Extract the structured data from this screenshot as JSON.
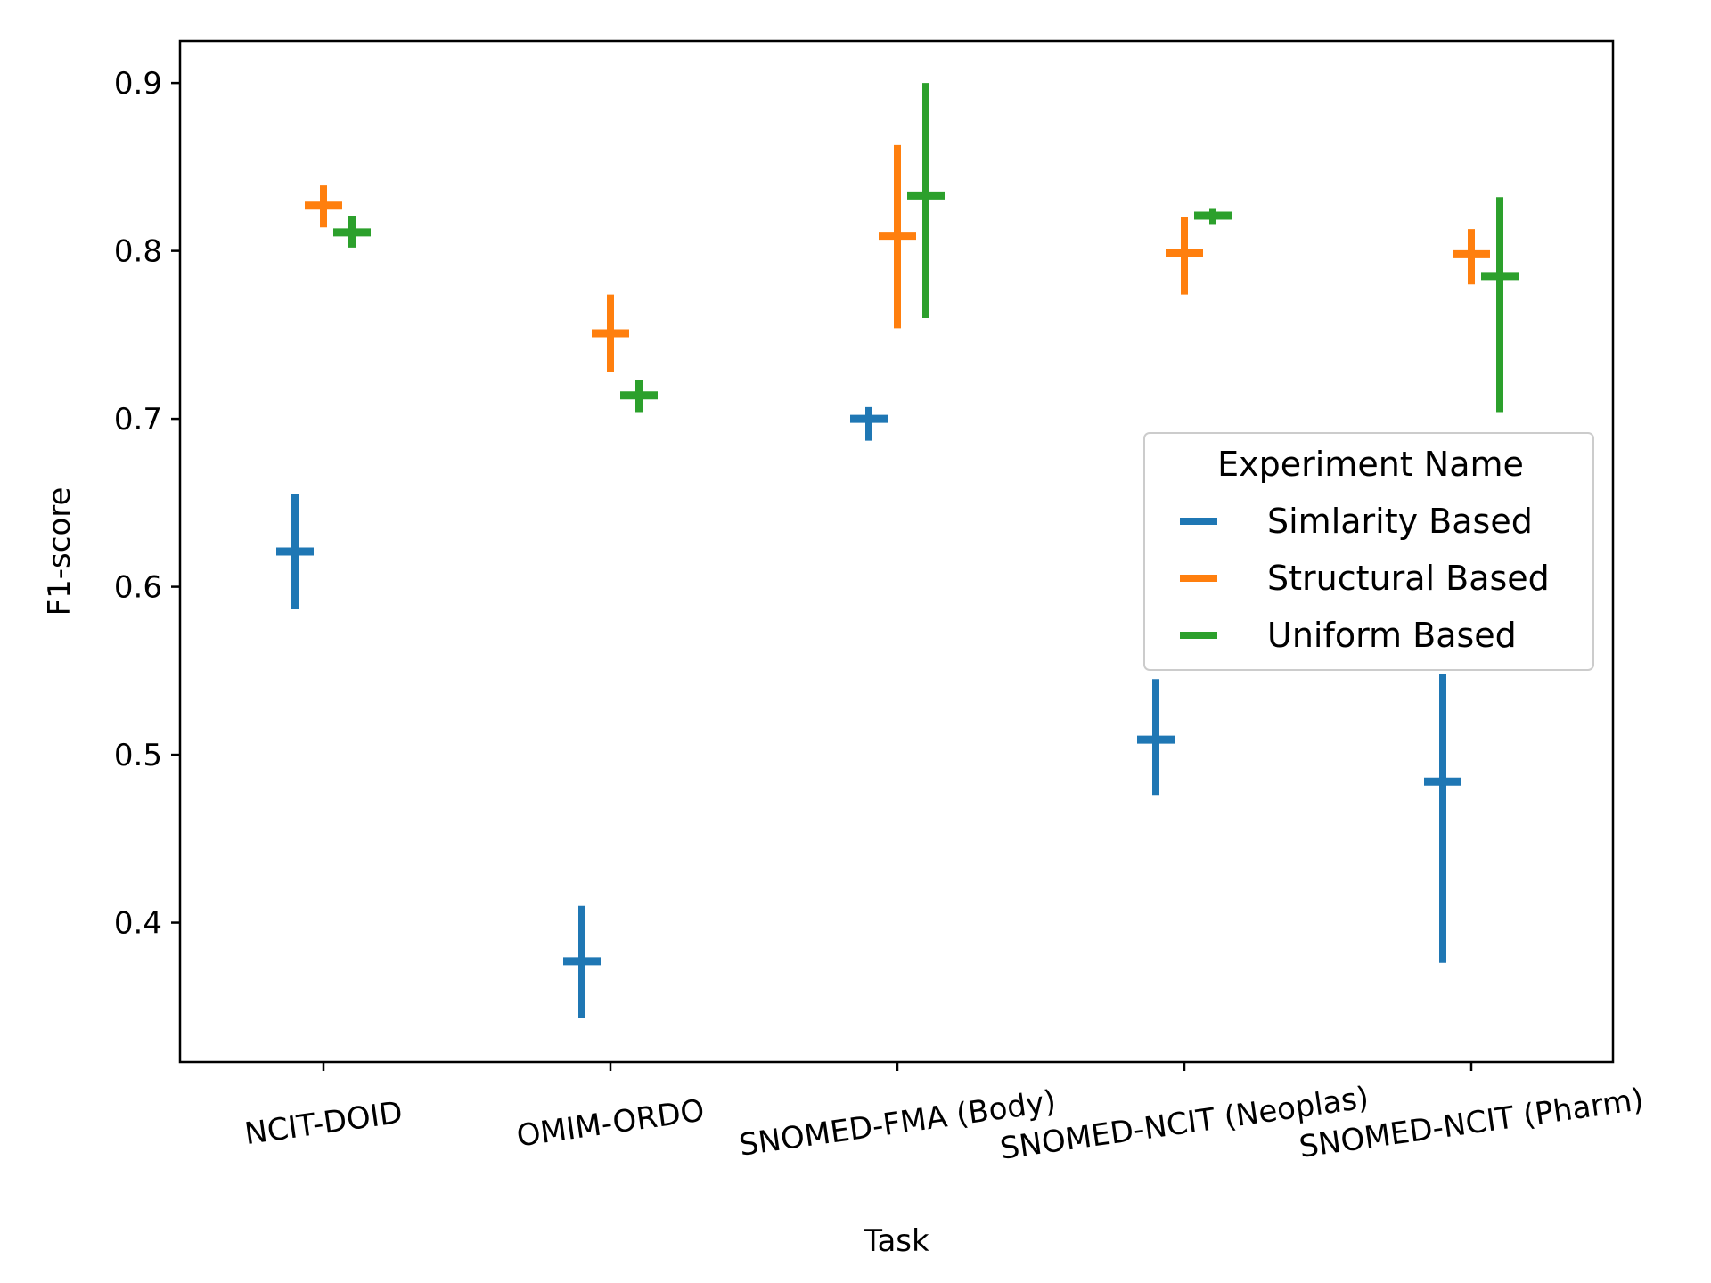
{
  "chart_data": {
    "type": "scatter",
    "xlabel": "Task",
    "ylabel": "F1-score",
    "categories": [
      "NCIT-DOID",
      "OMIM-ORDO",
      "SNOMED-FMA (Body)",
      "SNOMED-NCIT (Neoplas)",
      "SNOMED-NCIT (Pharm)"
    ],
    "ylim": [
      0.317,
      0.925
    ],
    "yticks": [
      "0.4",
      "0.5",
      "0.6",
      "0.7",
      "0.8",
      "0.9"
    ],
    "grid": false,
    "legend": {
      "title": "Experiment Name",
      "placement": "center-right"
    },
    "series": [
      {
        "name": "Simlarity Based",
        "color": "#1f77b4",
        "values": [
          0.621,
          0.377,
          0.7,
          0.509,
          0.484
        ],
        "lower": [
          0.587,
          0.343,
          0.687,
          0.476,
          0.376
        ],
        "upper": [
          0.655,
          0.41,
          0.707,
          0.545,
          0.548
        ]
      },
      {
        "name": "Structural Based",
        "color": "#ff7f0e",
        "values": [
          0.827,
          0.751,
          0.809,
          0.799,
          0.798
        ],
        "lower": [
          0.814,
          0.728,
          0.754,
          0.774,
          0.78
        ],
        "upper": [
          0.839,
          0.774,
          0.863,
          0.82,
          0.813
        ]
      },
      {
        "name": "Uniform Based",
        "color": "#2ca02c",
        "values": [
          0.811,
          0.714,
          0.833,
          0.821,
          0.785
        ],
        "lower": [
          0.802,
          0.704,
          0.76,
          0.816,
          0.704
        ],
        "upper": [
          0.821,
          0.723,
          0.9,
          0.825,
          0.832
        ]
      }
    ]
  }
}
